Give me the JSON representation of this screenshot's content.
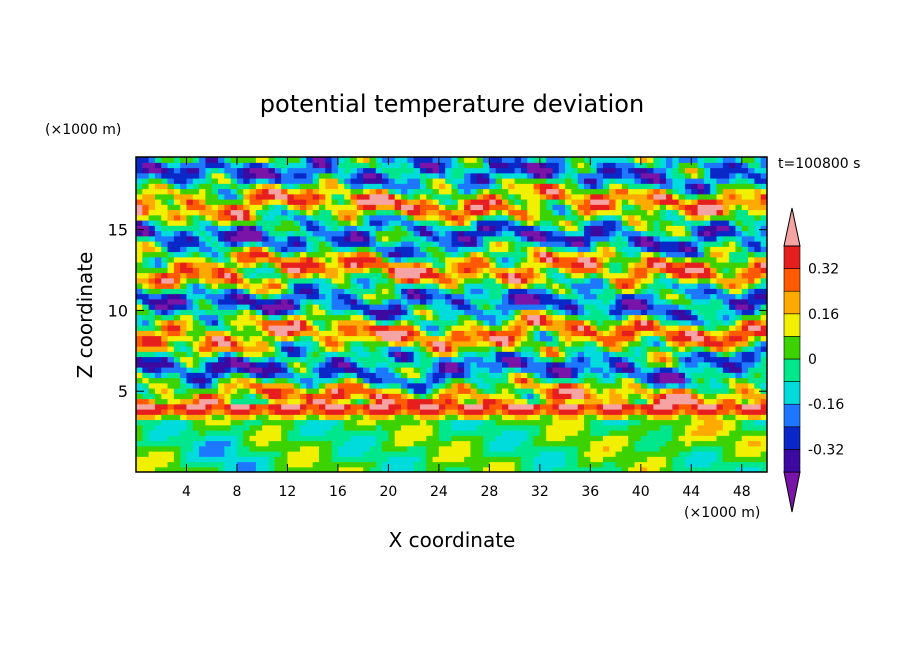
{
  "chart_data": {
    "type": "heatmap",
    "title": "potential temperature deviation",
    "xlabel": "X coordinate",
    "ylabel": "Z coordinate",
    "x_unit": "(×1000 m)",
    "y_unit": "(×1000 m)",
    "time_label": "t=100800 s",
    "xlim": [
      0,
      50
    ],
    "ylim": [
      0,
      19.5
    ],
    "x_ticks": [
      4,
      8,
      12,
      16,
      20,
      24,
      28,
      32,
      36,
      40,
      44,
      48
    ],
    "y_ticks": [
      5,
      10,
      15
    ],
    "colorbar": {
      "levels": [
        -0.4,
        -0.32,
        -0.24,
        -0.16,
        -0.08,
        0,
        0.08,
        0.16,
        0.24,
        0.32,
        0.4
      ],
      "labels": [
        "0.32",
        "0.16",
        "0",
        "-0.16",
        "-0.32"
      ],
      "label_values": [
        0.32,
        0.16,
        0,
        -0.16,
        -0.32
      ],
      "colors_bottom_to_top": [
        "#7a14a8",
        "#3c0aa0",
        "#0a28c8",
        "#1e78ff",
        "#00dcdc",
        "#00e68c",
        "#3cd200",
        "#f0f000",
        "#ffaa00",
        "#ff5a00",
        "#e61e1e",
        "#f5a3a3"
      ],
      "extend": "both"
    }
  }
}
